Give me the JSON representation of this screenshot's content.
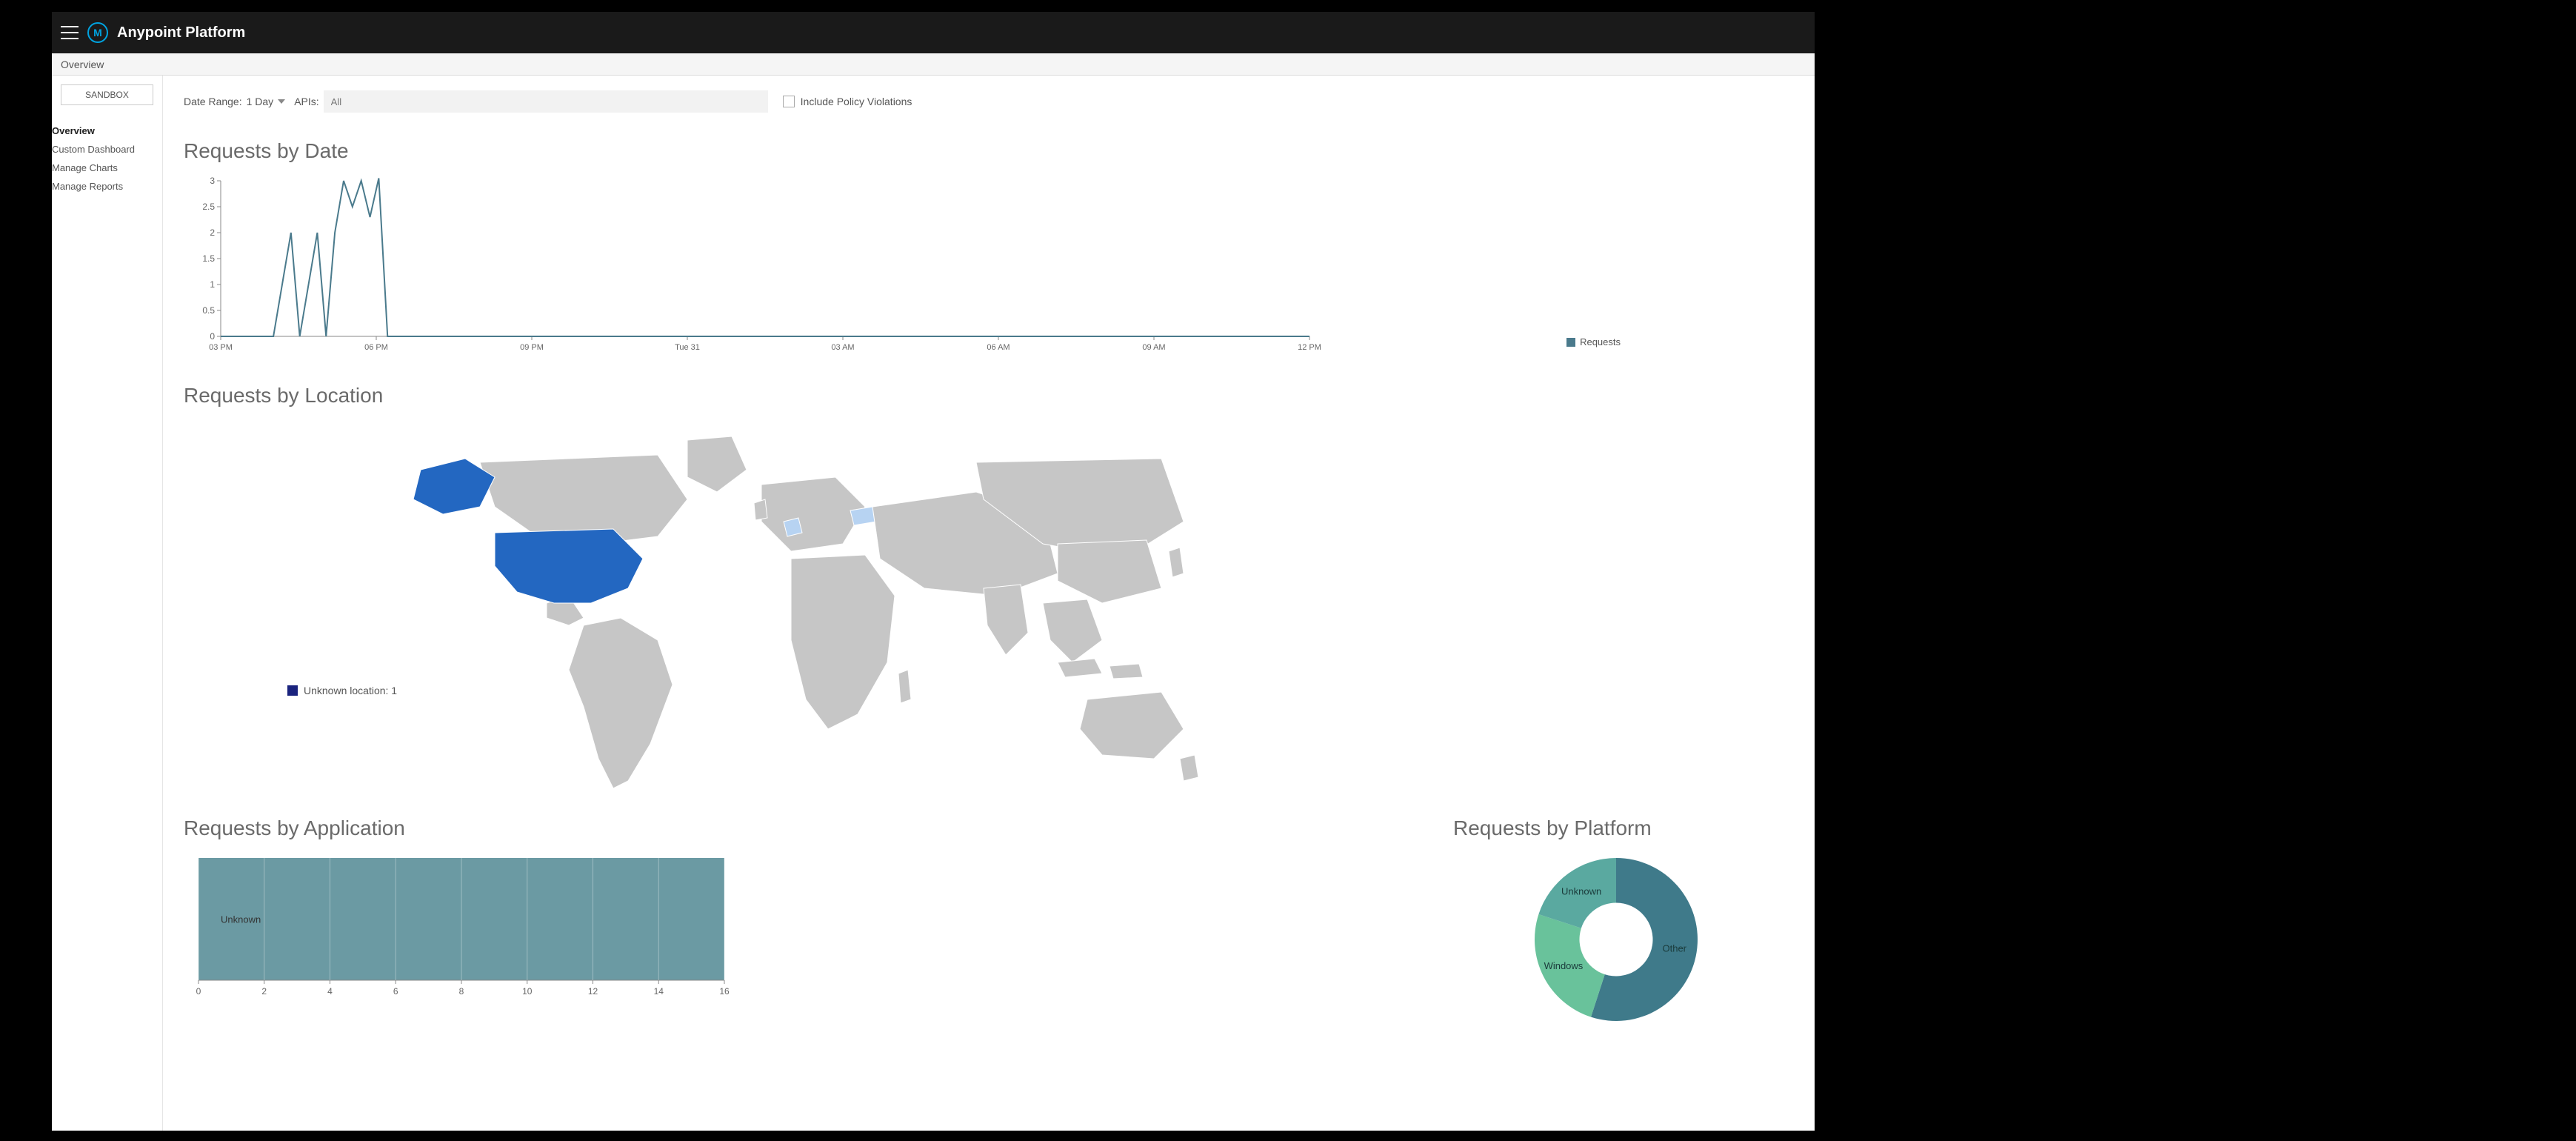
{
  "header": {
    "title": "Anypoint Platform",
    "logo_letter": "M"
  },
  "overview_bar": {
    "label": "Overview"
  },
  "sidebar": {
    "env": "SANDBOX",
    "items": [
      {
        "label": "Overview",
        "active": true
      },
      {
        "label": "Custom Dashboard",
        "active": false
      },
      {
        "label": "Manage Charts",
        "active": false
      },
      {
        "label": "Manage Reports",
        "active": false
      }
    ]
  },
  "filters": {
    "date_range_label": "Date Range:",
    "date_range_value": "1 Day",
    "apis_label": "APIs:",
    "apis_placeholder": "All",
    "checkbox_label": "Include Policy Violations",
    "checkbox_checked": false
  },
  "requests_by_date": {
    "title": "Requests by Date",
    "type": "line",
    "y_ticks": [
      0,
      0.5,
      1,
      1.5,
      2,
      2.5,
      3
    ],
    "ylim": [
      0,
      3
    ],
    "x_labels": [
      "03 PM",
      "06 PM",
      "09 PM",
      "Tue 31",
      "03 AM",
      "06 AM",
      "09 AM",
      "12 PM"
    ],
    "series_name": "Requests",
    "line_color": "#4a7a8c",
    "axis_color": "#888888",
    "text_color": "#666666",
    "values": [
      0,
      0,
      0,
      0,
      0,
      0,
      0,
      1,
      2,
      0,
      1,
      2,
      0,
      2,
      3,
      2.5,
      3,
      2.3,
      3.05,
      0,
      0,
      0,
      0,
      0,
      0,
      0,
      0,
      0,
      0,
      0,
      0,
      0,
      0,
      0,
      0,
      0,
      0,
      0,
      0,
      0,
      0,
      0,
      0,
      0,
      0,
      0,
      0,
      0,
      0,
      0,
      0,
      0,
      0,
      0,
      0,
      0,
      0,
      0,
      0,
      0,
      0,
      0,
      0,
      0,
      0,
      0,
      0,
      0,
      0,
      0,
      0,
      0,
      0,
      0,
      0,
      0,
      0,
      0,
      0,
      0,
      0,
      0,
      0,
      0,
      0,
      0,
      0,
      0,
      0,
      0,
      0,
      0,
      0,
      0,
      0,
      0,
      0,
      0,
      0,
      0,
      0,
      0,
      0,
      0,
      0,
      0,
      0,
      0,
      0,
      0,
      0,
      0,
      0,
      0,
      0,
      0,
      0,
      0,
      0,
      0,
      0,
      0,
      0,
      0,
      0
    ]
  },
  "requests_by_location": {
    "title": "Requests by Location",
    "type": "choropleth",
    "land_color": "#c6c6c6",
    "border_color": "#ffffff",
    "highlight_color": "#2367c1",
    "highlight_light_color": "#b7d3f2",
    "legend_label": "Unknown location: 1",
    "legend_color": "#1a237e"
  },
  "requests_by_application": {
    "title": "Requests by Application",
    "type": "bar-horizontal",
    "bar_color": "#6b9aa3",
    "axis_color": "#888888",
    "text_color": "#666666",
    "xlim": [
      0,
      16
    ],
    "x_ticks": [
      0,
      2,
      4,
      6,
      8,
      10,
      12,
      14,
      16
    ],
    "rows": [
      {
        "label": "Unknown",
        "value": 16
      }
    ]
  },
  "requests_by_platform": {
    "title": "Requests by Platform",
    "type": "donut",
    "inner_radius_pct": 45,
    "slices": [
      {
        "label": "Other",
        "value": 55,
        "color": "#3f7a8a"
      },
      {
        "label": "Windows",
        "value": 25,
        "color": "#69c29b"
      },
      {
        "label": "Unknown",
        "value": 20,
        "color": "#5aa9a0"
      }
    ]
  }
}
